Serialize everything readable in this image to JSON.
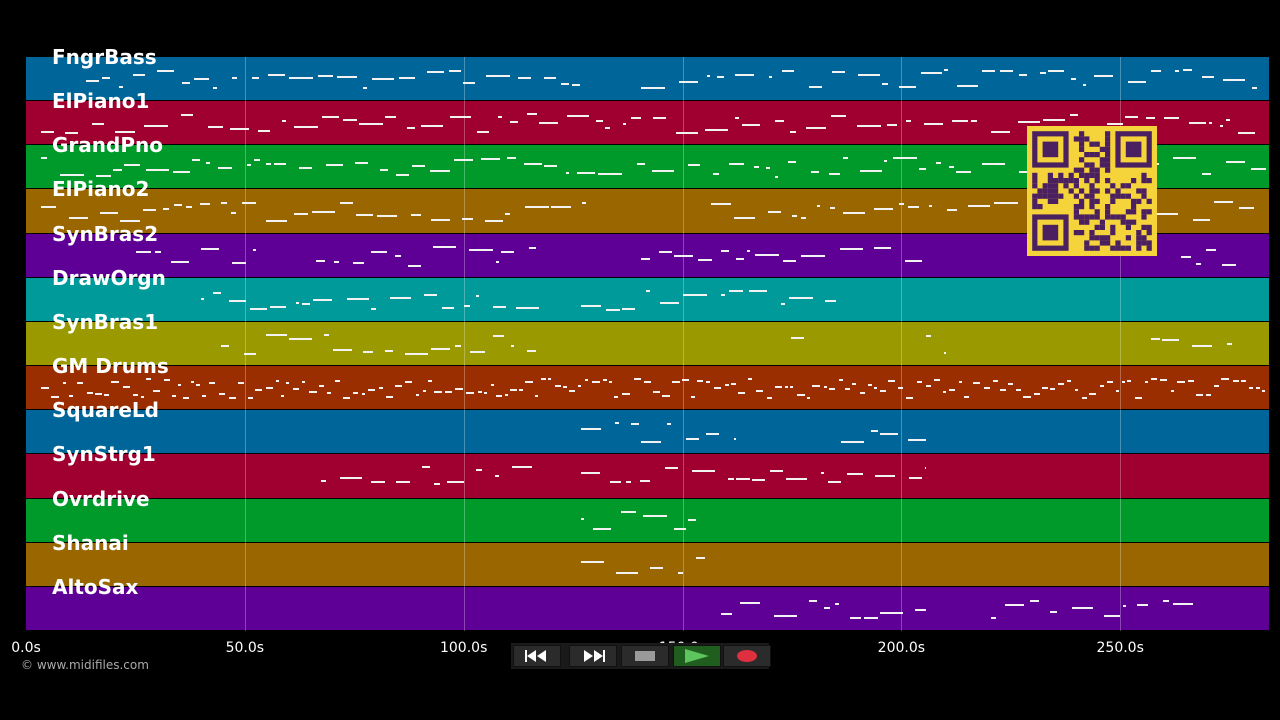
{
  "tracks": [
    {
      "name": "FngrBass",
      "color": "#00669a"
    },
    {
      "name": "ElPiano1",
      "color": "#a0002f"
    },
    {
      "name": "GrandPno",
      "color": "#009a2a"
    },
    {
      "name": "ElPiano2",
      "color": "#9a6600"
    },
    {
      "name": "SynBras2",
      "color": "#5e0096"
    },
    {
      "name": "DrawOrgn",
      "color": "#009a9a"
    },
    {
      "name": "SynBras1",
      "color": "#9a9a00"
    },
    {
      "name": "GM Drums",
      "color": "#9a2e00"
    },
    {
      "name": "SquareLd",
      "color": "#00669a"
    },
    {
      "name": "SynStrg1",
      "color": "#a0002f"
    },
    {
      "name": "Ovrdrive",
      "color": "#009a2a"
    },
    {
      "name": "Shanai",
      "color": "#9a6600"
    },
    {
      "name": "AltoSax",
      "color": "#5e0096"
    }
  ],
  "time_axis": {
    "ticks": [
      "0.0s",
      "50.0s",
      "100.0s",
      "150.0s",
      "200.0s",
      "250.0s"
    ],
    "tick_values": [
      0,
      50,
      100,
      150,
      200,
      250
    ],
    "max_seconds": 284
  },
  "copyright": "© www.midifiles.com",
  "transport": {
    "rewind_icon": "rewind-icon",
    "forward_icon": "fast-forward-icon",
    "stop_icon": "stop-icon",
    "play_icon": "play-icon",
    "record_icon": "record-icon"
  },
  "colors": {
    "background": "#000000",
    "note": "#f2f2f2",
    "qr_background": "#f5d33a",
    "qr_foreground": "#4a2060",
    "record_red": "#e03040",
    "play_green": "#5ec45e"
  }
}
